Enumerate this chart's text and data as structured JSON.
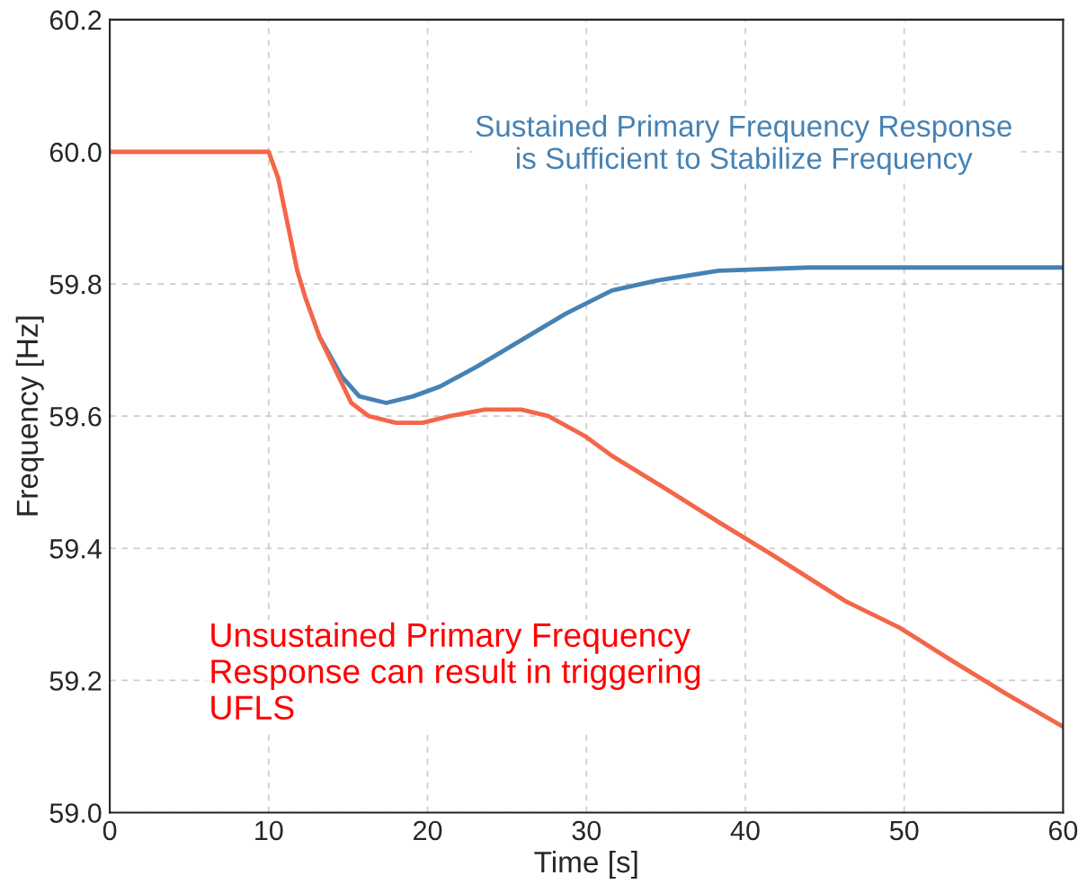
{
  "chart_data": {
    "type": "line",
    "xlabel": "Time [s]",
    "ylabel": "Frequency [Hz]",
    "xlim": [
      0,
      60
    ],
    "ylim": [
      59.0,
      60.2
    ],
    "xticks": [
      0,
      10,
      20,
      30,
      40,
      50,
      60
    ],
    "yticks": [
      {
        "value": 59.0,
        "label": "59.0"
      },
      {
        "value": 59.2,
        "label": "59.2"
      },
      {
        "value": 59.4,
        "label": "59.4"
      },
      {
        "value": 59.6,
        "label": "59.6"
      },
      {
        "value": 59.8,
        "label": "59.8"
      },
      {
        "value": 60.0,
        "label": "60.0"
      },
      {
        "value": 60.2,
        "label": "60.2"
      }
    ],
    "grid": true,
    "line_style": "solid",
    "series": [
      {
        "color": "#4682b4",
        "x": [
          13.2,
          14.6,
          15.7,
          17.4,
          19.1,
          20.8,
          23.1,
          25.9,
          28.7,
          31.6,
          34.4,
          38.3,
          44,
          60
        ],
        "values": [
          59.72,
          59.66,
          59.63,
          59.62,
          59.63,
          59.645,
          59.675,
          59.715,
          59.755,
          59.79,
          59.805,
          59.82,
          59.825,
          59.825
        ]
      },
      {
        "color": "#f4664a",
        "x": [
          0,
          10,
          10.6,
          11.2,
          11.8,
          12.3,
          13.2,
          14,
          15.2,
          16.3,
          18,
          19.7,
          21.4,
          23.6,
          25.9,
          27.6,
          29.9,
          31.6,
          35,
          38.3,
          41.7,
          46.3,
          49.7,
          53,
          56.4,
          60
        ],
        "values": [
          60.0,
          60.0,
          59.96,
          59.89,
          59.82,
          59.78,
          59.72,
          59.68,
          59.62,
          59.6,
          59.59,
          59.59,
          59.6,
          59.61,
          59.61,
          59.6,
          59.57,
          59.54,
          59.49,
          59.44,
          59.39,
          59.32,
          59.28,
          59.23,
          59.18,
          59.13
        ]
      }
    ],
    "annotations": [
      "Sustained Primary Frequency Response\nis Sufficient to Stabilize Frequency",
      "Unsustained Primary Frequency\nResponse can result in triggering\nUFLS"
    ]
  }
}
